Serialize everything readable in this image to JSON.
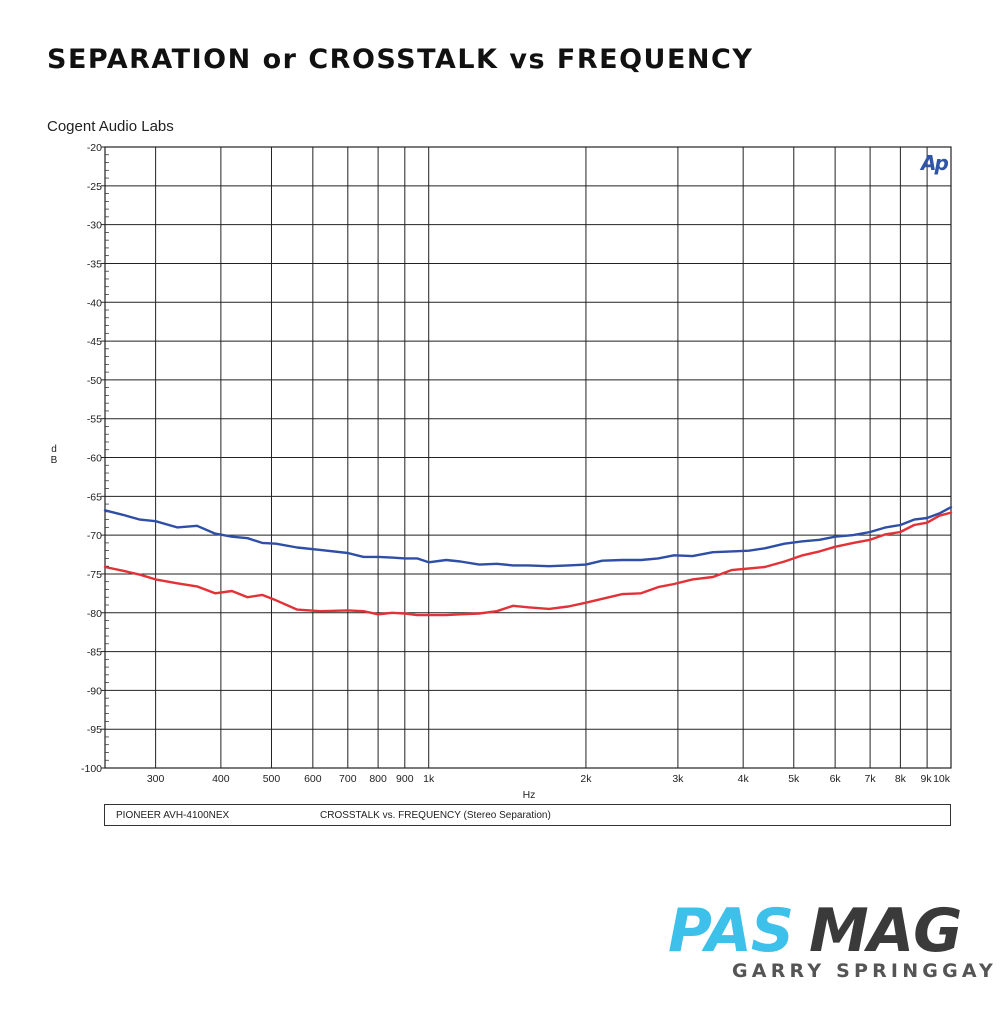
{
  "header": {
    "title": "SEPARATION or CROSSTALK vs FREQUENCY",
    "lab": "Cogent Audio Labs"
  },
  "info_box": {
    "device": "PIONEER  AVH-4100NEX",
    "measurement": "CROSSTALK vs. FREQUENCY (Stereo Separation)"
  },
  "logo": {
    "mark": "Ap",
    "brand_left": "PAS",
    "brand_right": "MAG",
    "author": "GARRY SPRINGGAY",
    "brand_color": "#3dc1ea",
    "brand_dark": "#3a3a3a",
    "mark_color": "#2f55a4"
  },
  "chart_data": {
    "type": "line",
    "xlabel": "Hz",
    "ylabel": "dB",
    "x_scale": "log",
    "xlim": [
      240,
      10000
    ],
    "ylim": [
      -100,
      -20
    ],
    "grid": true,
    "y_ticks": [
      -20,
      -25,
      -30,
      -35,
      -40,
      -45,
      -50,
      -55,
      -60,
      -65,
      -70,
      -75,
      -80,
      -85,
      -90,
      -95,
      -100
    ],
    "y_tick_labels": [
      "-20",
      "-25",
      "-30",
      "-35",
      "-40",
      "-45",
      "-50",
      "-55",
      "-60",
      "-65",
      "-70",
      "-75",
      "-80",
      "-85",
      "-90",
      "-95",
      "-100"
    ],
    "x_ticks": [
      300,
      400,
      500,
      600,
      700,
      800,
      900,
      1000,
      2000,
      3000,
      4000,
      5000,
      6000,
      7000,
      8000,
      9000,
      10000
    ],
    "x_tick_labels": [
      "300",
      "400",
      "500",
      "600",
      "700",
      "800",
      "900",
      "1k",
      "2k",
      "3k",
      "4k",
      "5k",
      "6k",
      "7k",
      "8k",
      "9k",
      "10k"
    ],
    "series": [
      {
        "color": "#2e4fa5",
        "x": [
          240,
          260,
          280,
          300,
          330,
          360,
          390,
          420,
          450,
          480,
          510,
          560,
          620,
          700,
          750,
          800,
          850,
          900,
          950,
          1000,
          1080,
          1150,
          1250,
          1350,
          1450,
          1550,
          1700,
          1850,
          2000,
          2150,
          2350,
          2550,
          2750,
          2950,
          3200,
          3500,
          3800,
          4100,
          4400,
          4800,
          5200,
          5600,
          6000,
          6500,
          7000,
          7500,
          8000,
          8500,
          9000,
          9500,
          10000
        ],
        "y": [
          -66.8,
          -67.4,
          -68.0,
          -68.2,
          -69.0,
          -68.8,
          -69.8,
          -70.2,
          -70.4,
          -71.0,
          -71.1,
          -71.6,
          -71.9,
          -72.3,
          -72.8,
          -72.8,
          -72.9,
          -73.0,
          -73.0,
          -73.5,
          -73.2,
          -73.4,
          -73.8,
          -73.7,
          -73.9,
          -73.9,
          -74.0,
          -73.9,
          -73.8,
          -73.3,
          -73.2,
          -73.2,
          -73.0,
          -72.6,
          -72.7,
          -72.2,
          -72.1,
          -72.0,
          -71.7,
          -71.1,
          -70.8,
          -70.6,
          -70.2,
          -70.0,
          -69.6,
          -69.0,
          -68.7,
          -68.0,
          -67.8,
          -67.2,
          -66.4
        ]
      },
      {
        "color": "#e23237",
        "x": [
          240,
          260,
          280,
          300,
          330,
          360,
          390,
          420,
          450,
          480,
          510,
          560,
          620,
          700,
          750,
          800,
          850,
          900,
          950,
          1000,
          1080,
          1150,
          1250,
          1350,
          1450,
          1550,
          1700,
          1850,
          2000,
          2150,
          2350,
          2550,
          2750,
          2950,
          3200,
          3500,
          3800,
          4100,
          4400,
          4800,
          5200,
          5600,
          6000,
          6500,
          7000,
          7500,
          8000,
          8500,
          9000,
          9500,
          10000
        ],
        "y": [
          -74.1,
          -74.6,
          -75.1,
          -75.7,
          -76.2,
          -76.6,
          -77.5,
          -77.2,
          -78.0,
          -77.7,
          -78.4,
          -79.6,
          -79.8,
          -79.7,
          -79.8,
          -80.2,
          -80.0,
          -80.1,
          -80.3,
          -80.3,
          -80.3,
          -80.2,
          -80.1,
          -79.8,
          -79.1,
          -79.3,
          -79.5,
          -79.2,
          -78.7,
          -78.2,
          -77.6,
          -77.5,
          -76.7,
          -76.3,
          -75.7,
          -75.4,
          -74.5,
          -74.3,
          -74.1,
          -73.4,
          -72.6,
          -72.1,
          -71.5,
          -71.0,
          -70.6,
          -69.9,
          -69.6,
          -68.7,
          -68.4,
          -67.5,
          -67.1
        ]
      }
    ]
  }
}
